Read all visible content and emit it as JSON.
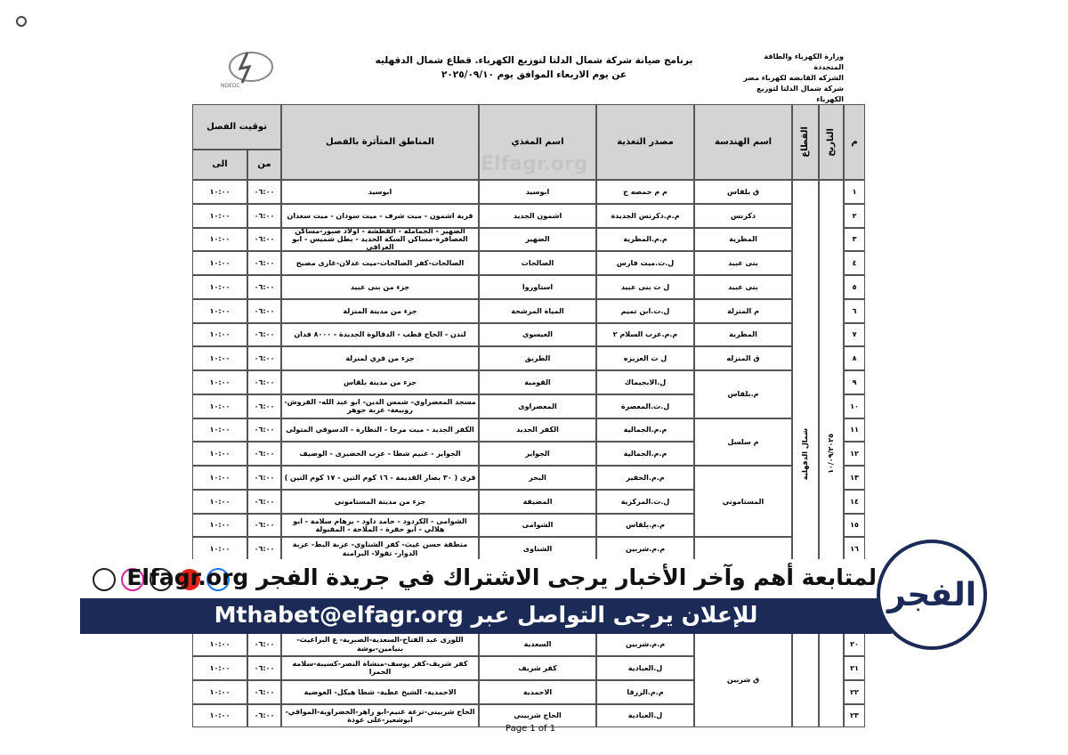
{
  "header": {
    "ministry_lines": [
      "وزارة الكهرباء والطاقة المتجددة",
      "الشركه القابضه لكهرباء مصر",
      "شركة شمال الدلتا لتوزيع الكهرباء"
    ],
    "title": "برنامج صيانة شركة شمال الدلتا لتوزيع الكهرباء. قطاع شمال الدقهليه",
    "subtitle": "عن يوم   الاربعاء  الموافق يوم ٢٠٢٥/٠٩/١٠",
    "logo_text": "NDEDC"
  },
  "table": {
    "columns": {
      "no": "م",
      "date": "التاريخ",
      "sector": "القطاع",
      "engineering": "اسم الهندسة",
      "source": "مصدر التغذية",
      "feeder": "اسم المغذي",
      "areas": "المناطق المتأثرة بالفصل",
      "time": "توقيت الفصل",
      "from": "من",
      "to": "الى"
    },
    "sector": "شمال الدقهلية",
    "date": "١٠/٠٩/٢٠٢٥",
    "rows": [
      {
        "no": "١",
        "engineering": "ق بلقاس",
        "source": "م م جمصه ج",
        "feeder": "ابوسيد",
        "areas": "ابوسيد",
        "from": "٠٦:٠٠",
        "to": "١٠:٠٠"
      },
      {
        "no": "٢",
        "engineering": "دكرنس",
        "source": "م.م.دكرنس الجديدة",
        "feeder": "اشمون الجديد",
        "areas": "قرية اشمون - ميت شرف - ميت سودان - ميت سعدان",
        "from": "٠٦:٠٠",
        "to": "١٠:٠٠"
      },
      {
        "no": "٣",
        "engineering": "المطرية",
        "source": "م.م.المطرية",
        "feeder": "الضهير",
        "areas": "الضهير - الجمامله - القطشة - اولاد صبور-مساكن العصافرة-مساكن السكة الحديد - بطل شميس - ابو العراقي",
        "from": "٠٦:٠٠",
        "to": "١٠:٠٠"
      },
      {
        "no": "٤",
        "engineering": "بنى عبيد",
        "source": "ل.ت.ميت فارس",
        "feeder": "الصالحات",
        "areas": "الصالحات-كفر الصالحات-ميت عدلان-غازى مصبح",
        "from": "٠٦:٠٠",
        "to": "١٠:٠٠"
      },
      {
        "no": "٥",
        "engineering": "بنى عبيد",
        "source": "ل ت بنى عبيد",
        "feeder": "استاوروا",
        "areas": "جزء من بنى عبيد",
        "from": "٠٦:٠٠",
        "to": "١٠:٠٠"
      },
      {
        "no": "٦",
        "engineering": "م المنزلة",
        "source": "ل.ت.ابن تميم",
        "feeder": "المياة المرشحة",
        "areas": "جزء من مدينة المنزلة",
        "from": "٠٦:٠٠",
        "to": "١٠:٠٠"
      },
      {
        "no": "٧",
        "engineering": "المطرية",
        "source": "م.م.غرب السلام ٢",
        "feeder": "العيسوى",
        "areas": "لندن - الحاج قطب - الدقالوة الجديدة - ٨٠٠٠ فدان",
        "from": "٠٦:٠٠",
        "to": "١٠:٠٠"
      },
      {
        "no": "٨",
        "engineering": "ق المنزله",
        "source": "ل ت العزيزه",
        "feeder": "الطريق",
        "areas": "جزء من قري لمنزلة",
        "from": "٠٦:٠٠",
        "to": "١٠:٠٠"
      },
      {
        "no": "٩",
        "engineering": "م.بلقاس",
        "source": "ل.الابجيماك",
        "feeder": "القومية",
        "areas": "جزء من مدينة بلقاس",
        "from": "٠٦:٠٠",
        "to": "١٠:٠٠"
      },
      {
        "no": "١٠",
        "source": "ل.ت.المعصرة",
        "feeder": "المعصراوى",
        "areas": "مسجد المعصراوي- شمس الدين- ابو عبد الله- الفروش- روبيعة- عزبة جوهر",
        "from": "٠٦:٠٠",
        "to": "١٠:٠٠"
      },
      {
        "no": "١١",
        "engineering": "م سلسل",
        "source": "م.م.الجمالية",
        "feeder": "الكفر الجديد",
        "areas": "الكفر الجديد - ميت مرجا - النظارة - الدسوقي المتولى",
        "from": "٠٦:٠٠",
        "to": "١٠:٠٠"
      },
      {
        "no": "١٢",
        "source": "م.م.الجمالية",
        "feeder": "الجواير",
        "areas": "الجواير - غنيم شطا - عزب الخضيرى - الوصيف",
        "from": "٠٦:٠٠",
        "to": "١٠:٠٠"
      },
      {
        "no": "١٣",
        "engineering": "المستاموني",
        "source": "م.م.الحفير",
        "feeder": "البحر",
        "areas": "قرى ( ٣٠ بصار القديمة - ١٦ كوم التين - ١٧ كوم التين )",
        "from": "٠٦:٠٠",
        "to": "١٠:٠٠"
      },
      {
        "no": "١٤",
        "source": "ل.ت.المركزية",
        "feeder": "المضيفة",
        "areas": "جزء من مدينة المستاموني",
        "from": "٠٦:٠٠",
        "to": "١٠:٠٠"
      },
      {
        "no": "١٥",
        "source": "م.م.بلقاس",
        "feeder": "الشوامى",
        "areas": "الشوامى - الكردود - حامد داود - برهام سلامة - ابو هلالي - ابو حقرة - الملاحة - المقبولة",
        "from": "٠٦:٠٠",
        "to": "١٠:٠٠"
      },
      {
        "no": "١٦",
        "source": "م.م.شربين",
        "feeder": "الشناوى",
        "areas": "منطقة حسن غيث- كفر الشناوي- عزبة البط- عزبة الدوار- تقولا- البرامنة",
        "from": "٠٦:٠٠",
        "to": "١٠:٠٠"
      },
      {
        "no": "٢٠",
        "engineering": "ق شربين",
        "source": "م.م.شربين",
        "feeder": "السعدية",
        "areas": "اللوزى عبد الفتاح-السعدية-الصبرية- ع البراغيث- بنيامين-بوشة",
        "from": "٠٦:٠٠",
        "to": "١٠:٠٠"
      },
      {
        "no": "٢١",
        "source": "ل.العبادية",
        "feeder": "كفر شريف",
        "areas": "كفر شريف-كفر يوسف-منشاة النصر-كسيبة-سلامة الحمرا",
        "from": "٠٦:٠٠",
        "to": "١٠:٠٠"
      },
      {
        "no": "٢٢",
        "source": "م.م.الزرقا",
        "feeder": "الاحمدية",
        "areas": "الاحمدية- الشيخ عطية- شطا هيكل- العوضية",
        "from": "٠٦:٠٠",
        "to": "١٠:٠٠"
      },
      {
        "no": "٢٣",
        "source": "ل.العبادية",
        "feeder": "الحاج شربيني",
        "areas": "الحاج شربيني-ترعة غنيم-ابو زاهر-الخضراوية-الموافي-ابوشعير-على عودة",
        "from": "٠٦:٠٠",
        "to": "١٠:٠٠"
      }
    ]
  },
  "footer": {
    "page": "Page 1 of 1"
  },
  "watermark": "Elfagr.org",
  "banner": {
    "subscribe": "لمتابعة أهم وآخر الأخبار يرجى الاشتراك في جريدة الفجر Elfagr.org",
    "contact": "للإعلان يرجى التواصل عبر Mthabet@elfagr.org",
    "logo": "الفجر"
  }
}
